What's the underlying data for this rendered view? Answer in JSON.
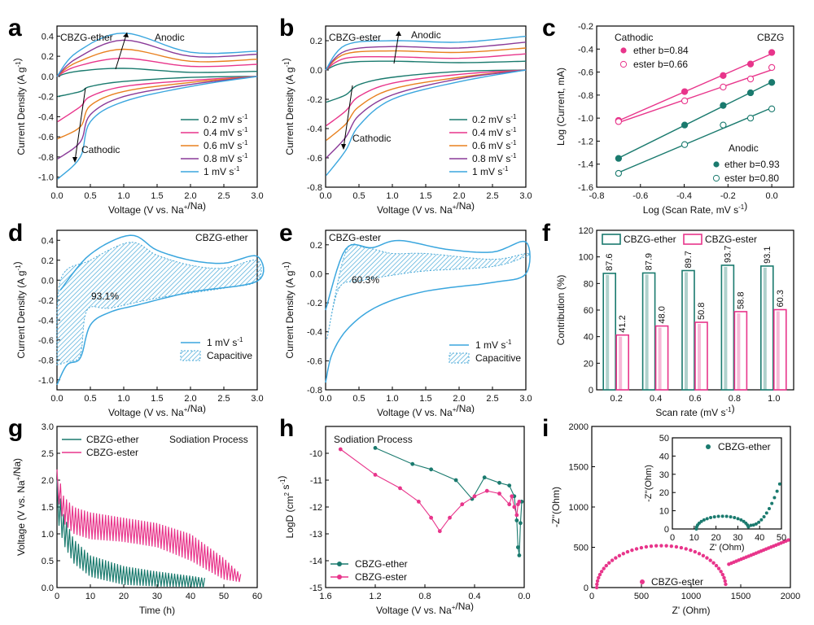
{
  "colors": {
    "teal": "#1a7a6e",
    "pink": "#e8358b",
    "orange": "#e8801e",
    "purple": "#8a3a98",
    "blue": "#3aa6de",
    "hatch": "#4aaad8"
  },
  "chart_data": [
    {
      "type": "line",
      "panel": "a",
      "corner_label": "CBZG-ether",
      "xlabel": "Voltage (V vs. Na+/Na)",
      "ylabel": "Current Density (A g-1)",
      "xlim": [
        0,
        3
      ],
      "ylim": [
        -1.1,
        0.5
      ],
      "xticks": [
        "0.0",
        "0.5",
        "1.0",
        "1.5",
        "2.0",
        "2.5",
        "3.0"
      ],
      "yticks": [
        "-1.0",
        "-0.8",
        "-0.6",
        "-0.4",
        "-0.2",
        "0.0",
        "0.2",
        "0.4"
      ],
      "legend": [
        "0.2 mV s-1",
        "0.4 mV s-1",
        "0.6 mV s-1",
        "0.8 mV s-1",
        "1 mV s-1"
      ],
      "annotations": [
        "Anodic",
        "Cathodic"
      ],
      "series": [
        {
          "name": "0.2 mV s-1",
          "anodic": [
            [
              0,
              0.0
            ],
            [
              0.3,
              0.05
            ],
            [
              1.0,
              0.08
            ],
            [
              2.0,
              0.04
            ],
            [
              3.0,
              0.05
            ]
          ],
          "cathodic": [
            [
              3.0,
              0.0
            ],
            [
              2.0,
              -0.01
            ],
            [
              1.0,
              -0.05
            ],
            [
              0.5,
              -0.1
            ],
            [
              0.35,
              -0.15
            ],
            [
              0.01,
              -0.2
            ]
          ]
        },
        {
          "name": "0.4 mV s-1",
          "anodic": [
            [
              0,
              0.0
            ],
            [
              0.3,
              0.1
            ],
            [
              1.0,
              0.18
            ],
            [
              2.0,
              0.1
            ],
            [
              3.0,
              0.12
            ]
          ],
          "cathodic": [
            [
              3.0,
              0.0
            ],
            [
              2.0,
              -0.04
            ],
            [
              1.0,
              -0.1
            ],
            [
              0.5,
              -0.2
            ],
            [
              0.35,
              -0.3
            ],
            [
              0.01,
              -0.45
            ]
          ]
        },
        {
          "name": "0.6 mV s-1",
          "anodic": [
            [
              0,
              0.0
            ],
            [
              0.3,
              0.14
            ],
            [
              1.0,
              0.27
            ],
            [
              2.0,
              0.15
            ],
            [
              3.0,
              0.17
            ]
          ],
          "cathodic": [
            [
              3.0,
              0.0
            ],
            [
              2.0,
              -0.06
            ],
            [
              1.0,
              -0.15
            ],
            [
              0.5,
              -0.29
            ],
            [
              0.35,
              -0.5
            ],
            [
              0.01,
              -0.62
            ]
          ]
        },
        {
          "name": "0.8 mV s-1",
          "anodic": [
            [
              0,
              0.0
            ],
            [
              0.3,
              0.18
            ],
            [
              1.0,
              0.36
            ],
            [
              2.0,
              0.2
            ],
            [
              3.0,
              0.22
            ]
          ],
          "cathodic": [
            [
              3.0,
              0.0
            ],
            [
              2.0,
              -0.08
            ],
            [
              1.0,
              -0.2
            ],
            [
              0.5,
              -0.38
            ],
            [
              0.35,
              -0.65
            ],
            [
              0.01,
              -0.82
            ]
          ]
        },
        {
          "name": "1 mV s-1",
          "anodic": [
            [
              0,
              0.0
            ],
            [
              0.3,
              0.24
            ],
            [
              1.0,
              0.43
            ],
            [
              2.0,
              0.24
            ],
            [
              3.0,
              0.25
            ]
          ],
          "cathodic": [
            [
              3.0,
              0.0
            ],
            [
              2.0,
              -0.1
            ],
            [
              1.0,
              -0.25
            ],
            [
              0.5,
              -0.45
            ],
            [
              0.35,
              -0.8
            ],
            [
              0.01,
              -1.02
            ]
          ]
        }
      ]
    },
    {
      "type": "line",
      "panel": "b",
      "corner_label": "CBZG-ester",
      "xlabel": "Voltage (V vs. Na+/Na)",
      "ylabel": "Current Density (A g-1)",
      "xlim": [
        0,
        3
      ],
      "ylim": [
        -0.8,
        0.3
      ],
      "xticks": [
        "0.0",
        "0.5",
        "1.0",
        "1.5",
        "2.0",
        "2.5",
        "3.0"
      ],
      "yticks": [
        "-0.8",
        "-0.6",
        "-0.4",
        "-0.2",
        "0.0",
        "0.2"
      ],
      "legend": [
        "0.2 mV s-1",
        "0.4 mV s-1",
        "0.6 mV s-1",
        "0.8 mV s-1",
        "1 mV s-1"
      ],
      "annotations": [
        "Anodic",
        "Cathodic"
      ],
      "series": [
        {
          "name": "0.2 mV s-1",
          "anodic": [
            [
              0,
              0.0
            ],
            [
              0.3,
              0.05
            ],
            [
              1.0,
              0.06
            ],
            [
              2.0,
              0.05
            ],
            [
              3.0,
              0.06
            ]
          ],
          "cathodic": [
            [
              3.0,
              0.0
            ],
            [
              2.0,
              -0.01
            ],
            [
              1.0,
              -0.05
            ],
            [
              0.5,
              -0.1
            ],
            [
              0.3,
              -0.17
            ],
            [
              0.01,
              -0.22
            ]
          ]
        },
        {
          "name": "0.4 mV s-1",
          "anodic": [
            [
              0,
              0.0
            ],
            [
              0.3,
              0.08
            ],
            [
              1.0,
              0.09
            ],
            [
              2.0,
              0.08
            ],
            [
              3.0,
              0.11
            ]
          ],
          "cathodic": [
            [
              3.0,
              0.0
            ],
            [
              2.0,
              -0.03
            ],
            [
              1.0,
              -0.09
            ],
            [
              0.5,
              -0.18
            ],
            [
              0.3,
              -0.28
            ],
            [
              0.01,
              -0.38
            ]
          ]
        },
        {
          "name": "0.6 mV s-1",
          "anodic": [
            [
              0,
              0.0
            ],
            [
              0.3,
              0.11
            ],
            [
              1.0,
              0.13
            ],
            [
              2.0,
              0.12
            ],
            [
              3.0,
              0.15
            ]
          ],
          "cathodic": [
            [
              3.0,
              0.0
            ],
            [
              2.0,
              -0.05
            ],
            [
              1.0,
              -0.13
            ],
            [
              0.5,
              -0.25
            ],
            [
              0.3,
              -0.37
            ],
            [
              0.01,
              -0.48
            ]
          ]
        },
        {
          "name": "0.8 mV s-1",
          "anodic": [
            [
              0,
              0.0
            ],
            [
              0.3,
              0.13
            ],
            [
              1.0,
              0.16
            ],
            [
              2.0,
              0.15
            ],
            [
              3.0,
              0.19
            ]
          ],
          "cathodic": [
            [
              3.0,
              0.0
            ],
            [
              2.0,
              -0.06
            ],
            [
              1.0,
              -0.17
            ],
            [
              0.5,
              -0.31
            ],
            [
              0.3,
              -0.46
            ],
            [
              0.01,
              -0.6
            ]
          ]
        },
        {
          "name": "1 mV s-1",
          "anodic": [
            [
              0,
              0.0
            ],
            [
              0.3,
              0.17
            ],
            [
              1.0,
              0.2
            ],
            [
              2.0,
              0.19
            ],
            [
              3.0,
              0.23
            ]
          ],
          "cathodic": [
            [
              3.0,
              0.0
            ],
            [
              2.0,
              -0.08
            ],
            [
              1.0,
              -0.2
            ],
            [
              0.5,
              -0.38
            ],
            [
              0.3,
              -0.55
            ],
            [
              0.01,
              -0.72
            ]
          ]
        }
      ]
    },
    {
      "type": "scatter",
      "panel": "c",
      "corner_label": "CBZG",
      "xlabel": "Log (Scan Rate, mV s-1)",
      "ylabel": "Log (Current, mA)",
      "xlim": [
        -0.8,
        0.1
      ],
      "ylim": [
        -1.6,
        -0.2
      ],
      "xticks": [
        "-0.8",
        "-0.6",
        "-0.4",
        "-0.2",
        "0.0"
      ],
      "yticks": [
        "-1.6",
        "-1.4",
        "-1.2",
        "-1.0",
        "-0.8",
        "-0.6",
        "-0.4",
        "-0.2"
      ],
      "legend_titles": [
        "Cathodic",
        "Anodic"
      ],
      "series": [
        {
          "name": "ether b=0.84",
          "group": "Cathodic",
          "filled": true,
          "x": [
            -0.7,
            -0.398,
            -0.222,
            -0.097,
            0.0
          ],
          "y": [
            -1.02,
            -0.77,
            -0.63,
            -0.53,
            -0.43
          ]
        },
        {
          "name": "ester b=0.66",
          "group": "Cathodic",
          "filled": false,
          "x": [
            -0.7,
            -0.398,
            -0.222,
            -0.097,
            0.0
          ],
          "y": [
            -1.03,
            -0.85,
            -0.73,
            -0.66,
            -0.56
          ]
        },
        {
          "name": "ether b=0.93",
          "group": "Anodic",
          "filled": true,
          "x": [
            -0.7,
            -0.398,
            -0.222,
            -0.097,
            0.0
          ],
          "y": [
            -1.35,
            -1.06,
            -0.89,
            -0.78,
            -0.69
          ]
        },
        {
          "name": "ester b=0.80",
          "group": "Anodic",
          "filled": false,
          "x": [
            -0.7,
            -0.398,
            -0.222,
            -0.097,
            0.0
          ],
          "y": [
            -1.48,
            -1.23,
            -1.06,
            -1.0,
            -0.92
          ]
        }
      ]
    },
    {
      "type": "area",
      "panel": "d",
      "corner_label": "CBZG-ether",
      "percent_label": "93.1%",
      "xlabel": "Voltage (V vs. Na+/Na)",
      "ylabel": "Current Density (A g-1)",
      "xlim": [
        0,
        3
      ],
      "ylim": [
        -1.1,
        0.5
      ],
      "xticks": [
        "0.0",
        "0.5",
        "1.0",
        "1.5",
        "2.0",
        "2.5",
        "3.0"
      ],
      "yticks": [
        "-1.0",
        "-0.8",
        "-0.6",
        "-0.4",
        "-0.2",
        "0.0",
        "0.2",
        "0.4"
      ],
      "legend": [
        "1 mV s-1",
        "Capacitive"
      ]
    },
    {
      "type": "area",
      "panel": "e",
      "corner_label": "CBZG-ester",
      "percent_label": "60.3%",
      "xlabel": "Voltage (V vs. Na+/Na)",
      "ylabel": "Current Density (A g-1)",
      "xlim": [
        0,
        3
      ],
      "ylim": [
        -0.8,
        0.3
      ],
      "xticks": [
        "0.0",
        "0.5",
        "1.0",
        "1.5",
        "2.0",
        "2.5",
        "3.0"
      ],
      "yticks": [
        "-0.8",
        "-0.6",
        "-0.4",
        "-0.2",
        "0.0",
        "0.2"
      ],
      "legend": [
        "1 mV s-1",
        "Capacitive"
      ]
    },
    {
      "type": "bar",
      "panel": "f",
      "xlabel": "Scan rate (mV s-1)",
      "ylabel": "Contribution (%)",
      "ylim": [
        0,
        120
      ],
      "categories": [
        "0.2",
        "0.4",
        "0.6",
        "0.8",
        "1.0"
      ],
      "yticks": [
        "0",
        "20",
        "40",
        "60",
        "80",
        "100",
        "120"
      ],
      "series": [
        {
          "name": "CBZG-ether",
          "values": [
            87.6,
            87.9,
            89.7,
            93.7,
            93.1
          ],
          "labels": [
            "87.6",
            "87.9",
            "89.7",
            "93.7",
            "93.1"
          ]
        },
        {
          "name": "CBZG-ester",
          "values": [
            41.2,
            48.0,
            50.8,
            58.8,
            60.3
          ],
          "labels": [
            "41.2",
            "48.0",
            "50.8",
            "58.8",
            "60.3"
          ]
        }
      ]
    },
    {
      "type": "line",
      "panel": "g",
      "corner_label": "Sodiation Process",
      "xlabel": "Time (h)",
      "ylabel": "Voltage (V vs. Na+/Na)",
      "xlim": [
        0,
        60
      ],
      "ylim": [
        0,
        3.0
      ],
      "xticks": [
        "0",
        "10",
        "20",
        "30",
        "40",
        "50",
        "60"
      ],
      "yticks": [
        "0.0",
        "0.5",
        "1.0",
        "1.5",
        "2.0",
        "2.5",
        "3.0"
      ],
      "series": [
        {
          "name": "CBZG-ether",
          "x": [
            0,
            2,
            5,
            10,
            20,
            30,
            40,
            44
          ],
          "y_top": [
            2.0,
            1.35,
            0.9,
            0.6,
            0.4,
            0.3,
            0.22,
            0.18
          ],
          "y_bottom": [
            1.3,
            0.8,
            0.45,
            0.2,
            0.05,
            0.02,
            0.01,
            0.0
          ]
        },
        {
          "name": "CBZG-ester",
          "x": [
            0,
            2,
            5,
            10,
            20,
            30,
            40,
            50,
            55
          ],
          "y_top": [
            2.2,
            1.7,
            1.5,
            1.4,
            1.3,
            1.2,
            1.0,
            0.55,
            0.25
          ],
          "y_bottom": [
            1.7,
            1.2,
            1.0,
            0.9,
            0.85,
            0.75,
            0.5,
            0.15,
            0.1
          ]
        }
      ]
    },
    {
      "type": "line",
      "panel": "h",
      "corner_label": "Sodiation Process",
      "xlabel": "Voltage (V vs. Na+/Na)",
      "ylabel": "LogD (cm2 s-1)",
      "xlim": [
        1.6,
        0.0
      ],
      "ylim": [
        -15,
        -9
      ],
      "xticks": [
        "1.6",
        "1.2",
        "0.8",
        "0.4",
        "0.0"
      ],
      "yticks": [
        "-15",
        "-14",
        "-13",
        "-12",
        "-11",
        "-10"
      ],
      "series": [
        {
          "name": "CBZG-ether",
          "x": [
            1.2,
            0.9,
            0.75,
            0.55,
            0.42,
            0.32,
            0.2,
            0.12,
            0.08,
            0.06,
            0.05,
            0.04,
            0.03,
            0.02
          ],
          "y": [
            -9.8,
            -10.4,
            -10.6,
            -11.0,
            -11.7,
            -10.9,
            -11.1,
            -11.2,
            -11.6,
            -12.5,
            -13.5,
            -13.8,
            -12.6,
            -11.8
          ]
        },
        {
          "name": "CBZG-ester",
          "x": [
            1.48,
            1.2,
            1.0,
            0.85,
            0.75,
            0.68,
            0.6,
            0.5,
            0.4,
            0.3,
            0.2,
            0.12,
            0.1,
            0.08,
            0.06,
            0.05,
            0.04
          ],
          "y": [
            -9.85,
            -10.8,
            -11.3,
            -11.8,
            -12.4,
            -12.9,
            -12.4,
            -11.9,
            -11.6,
            -11.4,
            -11.5,
            -11.9,
            -11.6,
            -12.0,
            -12.3,
            -11.9,
            -11.8
          ]
        }
      ]
    },
    {
      "type": "scatter",
      "panel": "i",
      "xlabel": "Z' (Ohm)",
      "ylabel": "-Z''(Ohm)",
      "xlim": [
        0,
        2000
      ],
      "ylim": [
        0,
        2000
      ],
      "xticks": [
        "0",
        "500",
        "1000",
        "1500",
        "2000"
      ],
      "yticks": [
        "0",
        "500",
        "1000",
        "1500",
        "2000"
      ],
      "series": [
        {
          "name": "CBZG-ester"
        }
      ],
      "inset": {
        "xlabel": "Z' (Ohm)",
        "ylabel": "-Z''(Ohm)",
        "xlim": [
          0,
          50
        ],
        "ylim": [
          0,
          50
        ],
        "xticks": [
          "0",
          "10",
          "20",
          "30",
          "40",
          "50"
        ],
        "yticks": [
          "0",
          "10",
          "20",
          "30",
          "40",
          "50"
        ],
        "series": [
          {
            "name": "CBZG-ether"
          }
        ]
      }
    }
  ]
}
